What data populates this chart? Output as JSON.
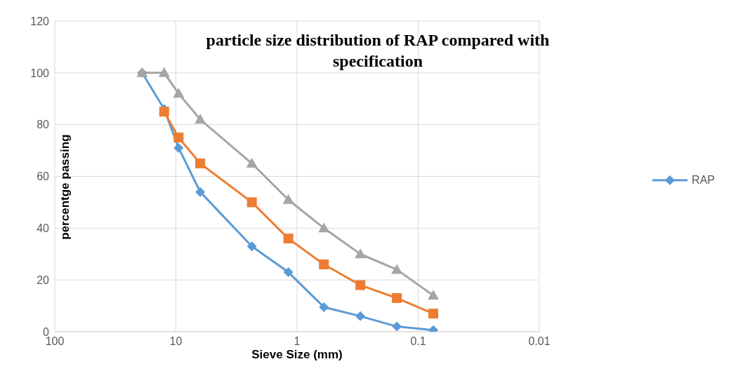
{
  "chart_data": {
    "type": "line",
    "title": "particle size distribution of RAP compared with specification",
    "xlabel": "Sieve Size (mm)",
    "ylabel": "percentge passing",
    "x": [
      19,
      12.5,
      9.5,
      6.3,
      2.36,
      1.18,
      0.6,
      0.3,
      0.15,
      0.075
    ],
    "series": [
      {
        "name": "RAP",
        "color": "#5b9bd5",
        "marker": "diamond",
        "values": [
          100,
          86,
          71,
          54,
          33,
          23,
          9.5,
          6,
          2,
          0.6
        ]
      },
      {
        "color": "#ed7d31",
        "marker": "square",
        "values": [
          null,
          85,
          75,
          65,
          50,
          36,
          26,
          18,
          13,
          7
        ]
      },
      {
        "color": "#a5a5a5",
        "marker": "triangle",
        "values": [
          100,
          100,
          92,
          82,
          65,
          51,
          40,
          30,
          24,
          14
        ]
      }
    ],
    "log": "x",
    "xlim": [
      100,
      0.01
    ],
    "xticks": [
      100,
      10,
      1,
      0.1,
      0.01
    ],
    "ylim": [
      0,
      120
    ],
    "yticks": [
      0,
      20,
      40,
      60,
      80,
      100,
      120
    ],
    "grid": true,
    "legend": "right",
    "line_style": "solid"
  }
}
